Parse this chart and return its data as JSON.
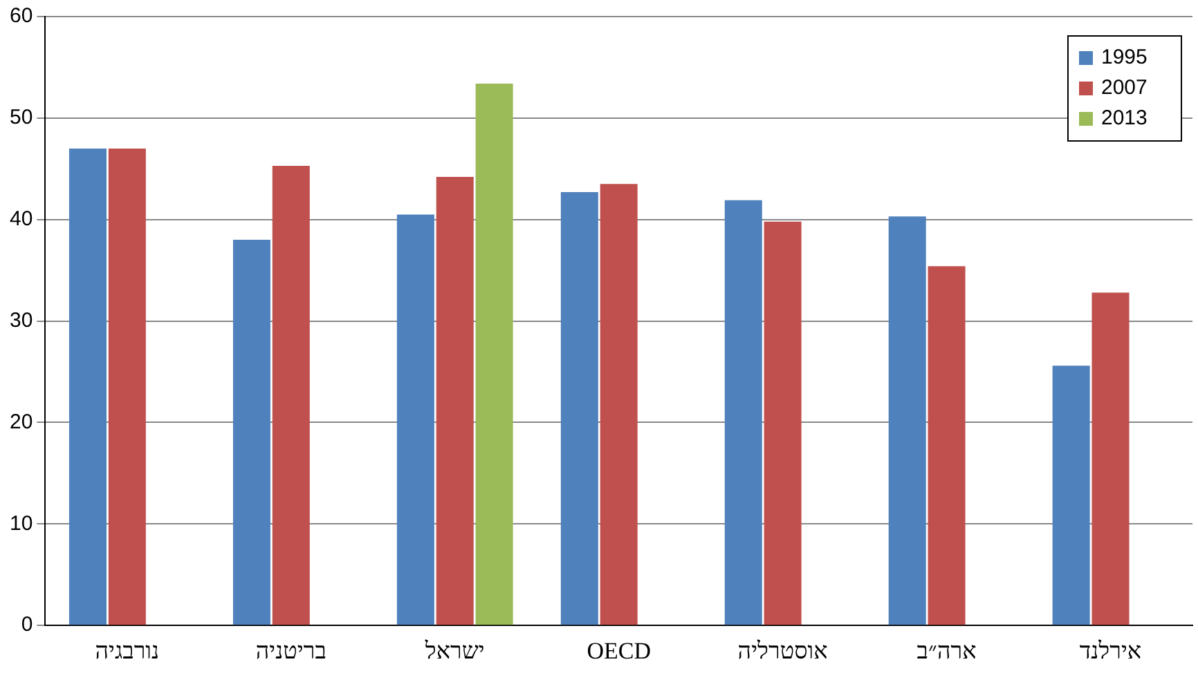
{
  "chart_data": {
    "type": "bar",
    "categories": [
      "נורבגיה",
      "בריטניה",
      "ישראל",
      "OECD",
      "אוסטרליה",
      "ארה״ב",
      "אירלנד"
    ],
    "series": [
      {
        "name": "1995",
        "color": "#4f81bd",
        "values": [
          47,
          38,
          40.5,
          42.7,
          41.9,
          40.3,
          25.6
        ]
      },
      {
        "name": "2007",
        "color": "#c0504d",
        "values": [
          47,
          45.3,
          44.2,
          43.5,
          39.8,
          35.4,
          32.8
        ]
      },
      {
        "name": "2013",
        "color": "#9bbb59",
        "values": [
          null,
          null,
          53.4,
          null,
          null,
          null,
          null
        ]
      }
    ],
    "ylim": [
      0,
      60
    ],
    "yticks": [
      0,
      10,
      20,
      30,
      40,
      50,
      60
    ],
    "grid": "y",
    "legend": "top right"
  }
}
